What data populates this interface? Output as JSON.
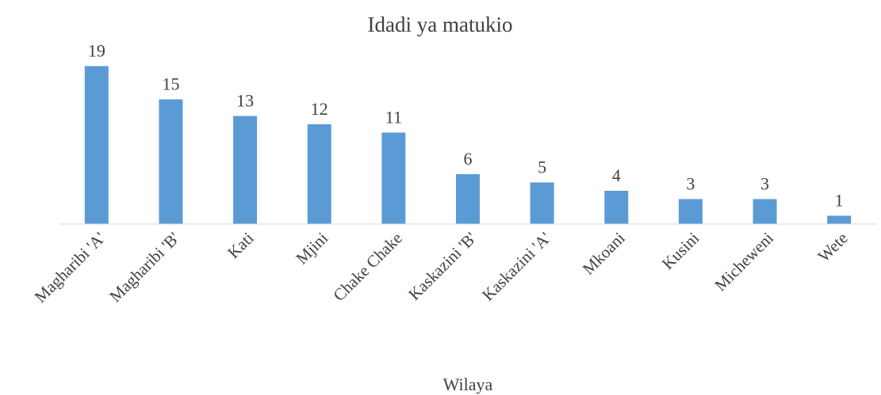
{
  "chart_data": {
    "type": "bar",
    "title": "Idadi ya matukio",
    "x_label": "Wilaya",
    "categories": [
      "Magharibi 'A'",
      "Magharibi 'B'",
      "Kati",
      "Mjini",
      "Chake Chake",
      "Kaskazini 'B'",
      "Kaskazini 'A'",
      "Mkoani",
      "Kusini",
      "Micheweni",
      "Wete"
    ],
    "values": [
      19,
      15,
      13,
      12,
      11,
      6,
      5,
      4,
      3,
      3,
      1
    ],
    "color": "#5b9bd5",
    "ylim": [
      0,
      20
    ]
  }
}
